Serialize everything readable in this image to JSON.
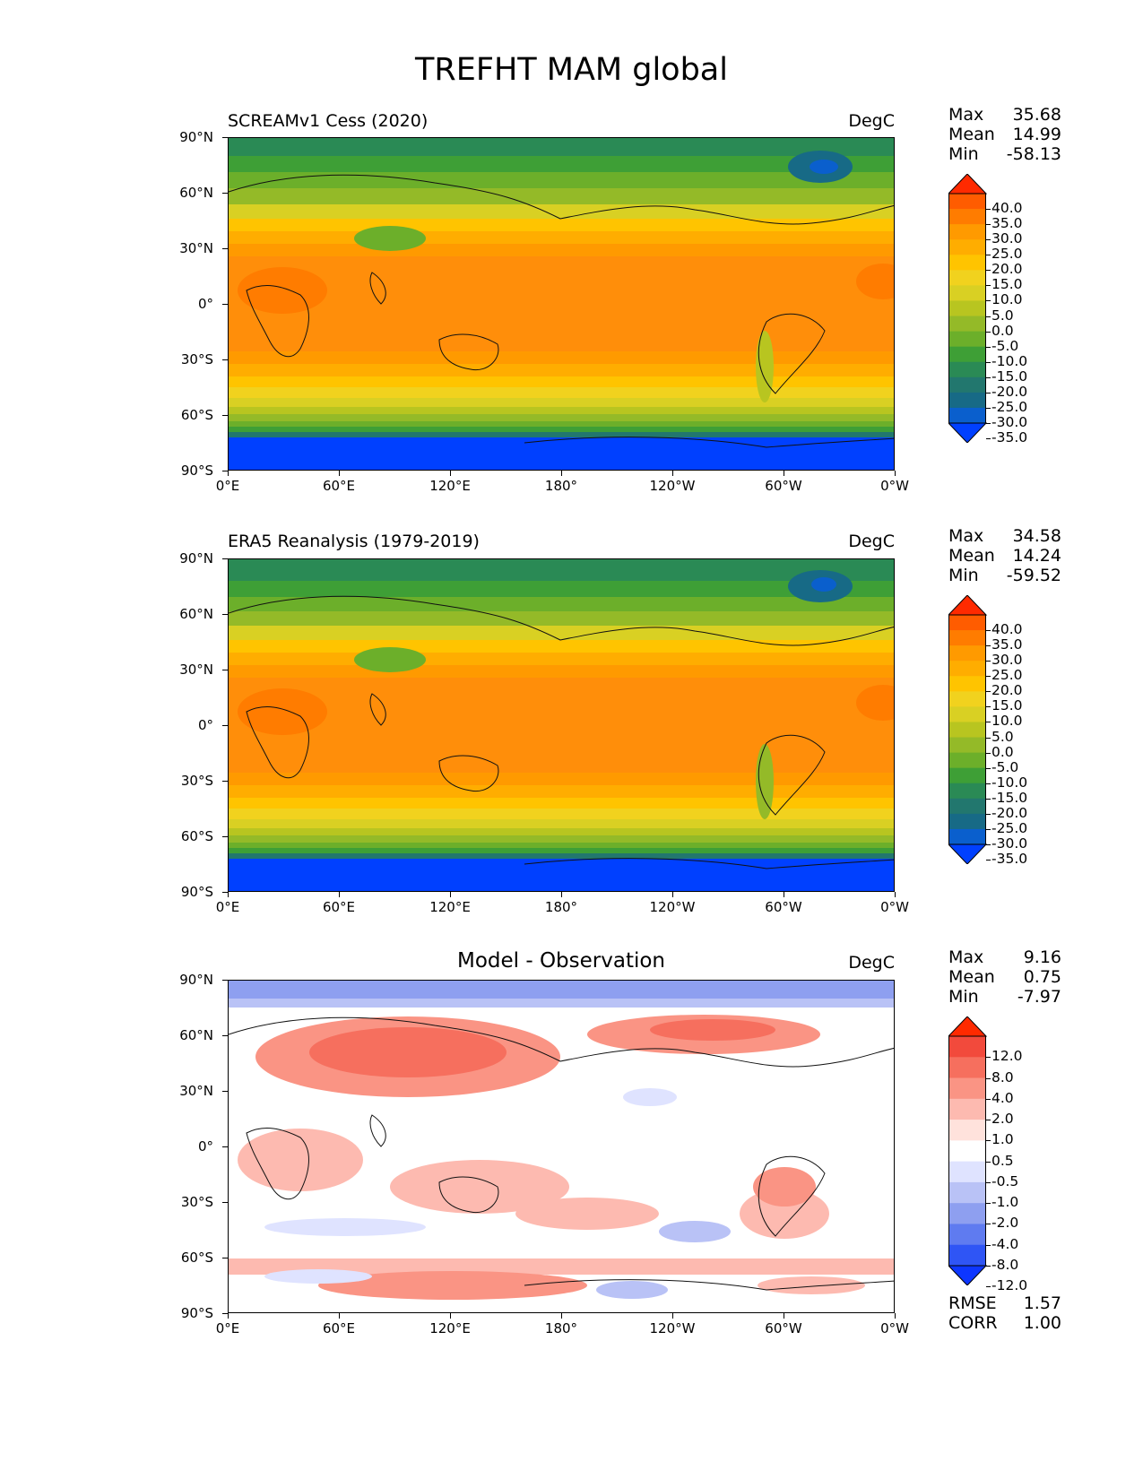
{
  "figure": {
    "title": "TREFHT MAM global"
  },
  "axes": {
    "lat_labels": [
      "90°N",
      "60°N",
      "30°N",
      "0°",
      "30°S",
      "60°S",
      "90°S"
    ],
    "lon_labels": [
      "0°E",
      "60°E",
      "120°E",
      "180°",
      "120°W",
      "60°W",
      "0°W"
    ]
  },
  "panels": [
    {
      "title": "SCREAMv1 Cess (2020)",
      "units": "DegC",
      "stats": {
        "max_label": "Max",
        "max": "35.68",
        "mean_label": "Mean",
        "mean": "14.99",
        "min_label": "Min",
        "min": "-58.13"
      },
      "colorbar": {
        "labels": [
          "40.0",
          "35.0",
          "30.0",
          "25.0",
          "20.0",
          "15.0",
          "10.0",
          "5.0",
          "0.0",
          "-5.0",
          "-10.0",
          "-15.0",
          "-20.0",
          "-25.0",
          "-30.0",
          "-35.0"
        ],
        "colors": [
          "#ff2a00",
          "#ff5c00",
          "#ff7c00",
          "#ff9a00",
          "#ffad00",
          "#ffc400",
          "#f1d21e",
          "#d9d023",
          "#b8c520",
          "#94ba28",
          "#6caf2a",
          "#3e9f36",
          "#2a8a55",
          "#22776e",
          "#176a86",
          "#0a5fcd",
          "#0040ff"
        ]
      }
    },
    {
      "title": "ERA5 Reanalysis (1979-2019)",
      "units": "DegC",
      "stats": {
        "max_label": "Max",
        "max": "34.58",
        "mean_label": "Mean",
        "mean": "14.24",
        "min_label": "Min",
        "min": "-59.52"
      },
      "colorbar": {
        "labels": [
          "40.0",
          "35.0",
          "30.0",
          "25.0",
          "20.0",
          "15.0",
          "10.0",
          "5.0",
          "0.0",
          "-5.0",
          "-10.0",
          "-15.0",
          "-20.0",
          "-25.0",
          "-30.0",
          "-35.0"
        ],
        "colors": [
          "#ff2a00",
          "#ff5c00",
          "#ff7c00",
          "#ff9a00",
          "#ffad00",
          "#ffc400",
          "#f1d21e",
          "#d9d023",
          "#b8c520",
          "#94ba28",
          "#6caf2a",
          "#3e9f36",
          "#2a8a55",
          "#22776e",
          "#176a86",
          "#0a5fcd",
          "#0040ff"
        ]
      }
    },
    {
      "title": "Model - Observation",
      "units": "DegC",
      "stats": {
        "max_label": "Max",
        "max": "9.16",
        "mean_label": "Mean",
        "mean": "0.75",
        "min_label": "Min",
        "min": "-7.97"
      },
      "colorbar": {
        "labels": [
          "12.0",
          "8.0",
          "4.0",
          "2.0",
          "1.0",
          "0.5",
          "-0.5",
          "-1.0",
          "-2.0",
          "-4.0",
          "-8.0",
          "-12.0"
        ],
        "colors": [
          "#ff2a00",
          "#f24a3c",
          "#f66f5e",
          "#fa9484",
          "#fdbab0",
          "#ffe2dc",
          "#ffffff",
          "#dfe3ff",
          "#b9c2f6",
          "#8e9ff0",
          "#5f7bf0",
          "#2f55f5",
          "#0d36ff"
        ]
      },
      "extra": {
        "rmse_label": "RMSE",
        "rmse": "1.57",
        "corr_label": "CORR",
        "corr": "1.00"
      }
    }
  ]
}
